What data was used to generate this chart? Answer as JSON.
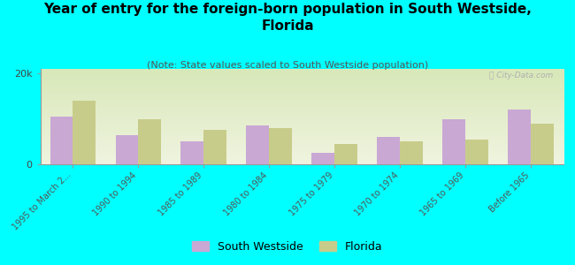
{
  "title": "Year of entry for the foreign-born population in South Westside,\nFlorida",
  "subtitle": "(Note: State values scaled to South Westside population)",
  "categories": [
    "1995 to March 2...",
    "1990 to 1994",
    "1985 to 1989",
    "1980 to 1984",
    "1975 to 1979",
    "1970 to 1974",
    "1965 to 1969",
    "Before 1965"
  ],
  "south_westside": [
    10500,
    6500,
    5000,
    8500,
    2500,
    6000,
    10000,
    12000
  ],
  "florida": [
    14000,
    10000,
    7500,
    8000,
    4500,
    5000,
    5500,
    9000
  ],
  "ylim": [
    0,
    21000
  ],
  "yticks": [
    0,
    20000
  ],
  "ytick_labels": [
    "0",
    "20k"
  ],
  "bar_color_sw": "#c9a8d4",
  "bar_color_fl": "#c8cc8a",
  "background_color": "#00ffff",
  "watermark": "ⓒ City-Data.com",
  "legend_sw": "South Westside",
  "legend_fl": "Florida",
  "title_fontsize": 11,
  "subtitle_fontsize": 8,
  "bar_width": 0.35
}
